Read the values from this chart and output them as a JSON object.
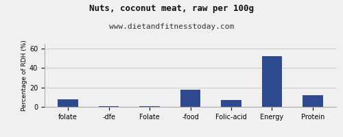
{
  "title": "Nuts, coconut meat, raw per 100g",
  "subtitle": "www.dietandfitnesstoday.com",
  "categories": [
    "folate",
    "-dfe",
    "Folate",
    "-food",
    "Folic-acid",
    "Energy",
    "Protein"
  ],
  "values": [
    8,
    0.5,
    0.5,
    18,
    7,
    52,
    12
  ],
  "bar_color": "#2e4a8e",
  "ylabel": "Percentage of RDH (%)",
  "ylim": [
    0,
    65
  ],
  "yticks": [
    0,
    20,
    40,
    60
  ],
  "background_color": "#f0f0f0",
  "plot_bg_color": "#f0f0f0",
  "title_fontsize": 9,
  "subtitle_fontsize": 8,
  "ylabel_fontsize": 6.5,
  "tick_fontsize": 7,
  "grid_color": "#cccccc",
  "border_color": "#aaaaaa"
}
